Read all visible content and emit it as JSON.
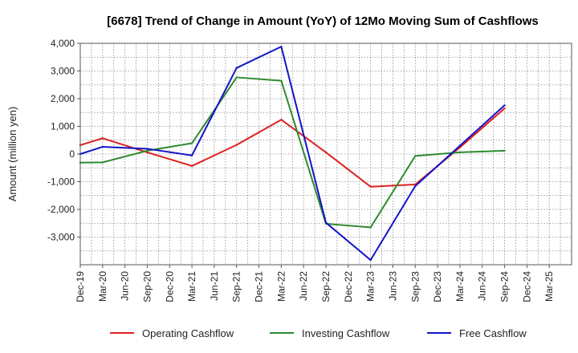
{
  "chart_data": {
    "type": "line",
    "title": "[6678]  Trend of Change in Amount (YoY) of 12Mo Moving Sum of Cashflows",
    "xlabel": "",
    "ylabel": "Amount (million yen)",
    "ylim": [
      -4000,
      4000
    ],
    "yticks": [
      4000,
      3000,
      2000,
      1000,
      0,
      -1000,
      -2000,
      -3000
    ],
    "ytick_labels": [
      "4,000",
      "3,000",
      "2,000",
      "1,000",
      "0",
      "-1,000",
      "-2,000",
      "-3,000"
    ],
    "categories": [
      "Dec-19",
      "Mar-20",
      "Jun-20",
      "Sep-20",
      "Dec-20",
      "Mar-21",
      "Jun-21",
      "Sep-21",
      "Dec-21",
      "Mar-22",
      "Jun-22",
      "Sep-22",
      "Dec-22",
      "Mar-23",
      "Jun-23",
      "Sep-23",
      "Dec-23",
      "Mar-24",
      "Jun-24",
      "Sep-24",
      "Dec-24",
      "Mar-25"
    ],
    "grid": true,
    "legend_position": "bottom",
    "series": [
      {
        "name": "Operating Cashflow",
        "color": "#dd2020",
        "points": [
          {
            "x": "Dec-19",
            "y": 320
          },
          {
            "x": "Mar-20",
            "y": 570
          },
          {
            "x": "Sep-20",
            "y": 60
          },
          {
            "x": "Mar-21",
            "y": -430
          },
          {
            "x": "Sep-21",
            "y": 330
          },
          {
            "x": "Mar-22",
            "y": 1240
          },
          {
            "x": "Sep-22",
            "y": 60
          },
          {
            "x": "Mar-23",
            "y": -1180
          },
          {
            "x": "Sep-23",
            "y": -1100
          },
          {
            "x": "Mar-24",
            "y": 240
          },
          {
            "x": "Sep-24",
            "y": 1650
          }
        ]
      },
      {
        "name": "Investing Cashflow",
        "color": "#2e8b2e",
        "points": [
          {
            "x": "Dec-19",
            "y": -310
          },
          {
            "x": "Mar-20",
            "y": -300
          },
          {
            "x": "Sep-20",
            "y": 120
          },
          {
            "x": "Mar-21",
            "y": 390
          },
          {
            "x": "Sep-21",
            "y": 2770
          },
          {
            "x": "Mar-22",
            "y": 2650
          },
          {
            "x": "Sep-22",
            "y": -2520
          },
          {
            "x": "Mar-23",
            "y": -2650
          },
          {
            "x": "Sep-23",
            "y": -70
          },
          {
            "x": "Mar-24",
            "y": 60
          },
          {
            "x": "Sep-24",
            "y": 120
          }
        ]
      },
      {
        "name": "Free Cashflow",
        "color": "#1414c8",
        "points": [
          {
            "x": "Dec-19",
            "y": 0
          },
          {
            "x": "Mar-20",
            "y": 260
          },
          {
            "x": "Sep-20",
            "y": 190
          },
          {
            "x": "Mar-21",
            "y": -50
          },
          {
            "x": "Sep-21",
            "y": 3110
          },
          {
            "x": "Mar-22",
            "y": 3880
          },
          {
            "x": "Sep-22",
            "y": -2480
          },
          {
            "x": "Mar-23",
            "y": -3830
          },
          {
            "x": "Sep-23",
            "y": -1160
          },
          {
            "x": "Mar-24",
            "y": 300
          },
          {
            "x": "Sep-24",
            "y": 1760
          }
        ]
      }
    ]
  }
}
